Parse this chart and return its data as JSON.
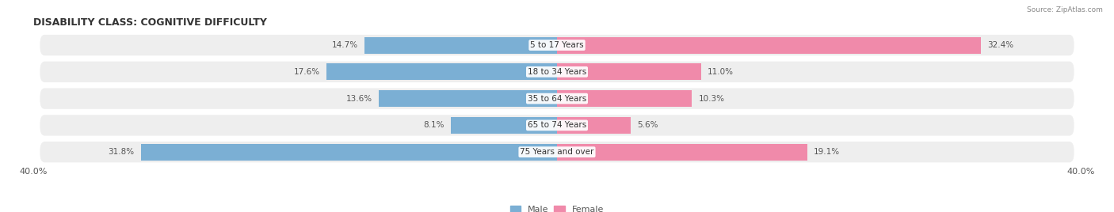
{
  "title": "DISABILITY CLASS: COGNITIVE DIFFICULTY",
  "source": "Source: ZipAtlas.com",
  "categories": [
    "5 to 17 Years",
    "18 to 34 Years",
    "35 to 64 Years",
    "65 to 74 Years",
    "75 Years and over"
  ],
  "male_values": [
    14.7,
    17.6,
    13.6,
    8.1,
    31.8
  ],
  "female_values": [
    32.4,
    11.0,
    10.3,
    5.6,
    19.1
  ],
  "max_val": 40.0,
  "male_color": "#7bafd4",
  "female_color": "#f08aaa",
  "label_color": "#555555",
  "bg_color": "#ffffff",
  "row_bg_color": "#eeeeee",
  "title_fontsize": 9,
  "label_fontsize": 7.5,
  "axis_label_fontsize": 8,
  "bar_height": 0.62,
  "center_label_color": "#333333"
}
